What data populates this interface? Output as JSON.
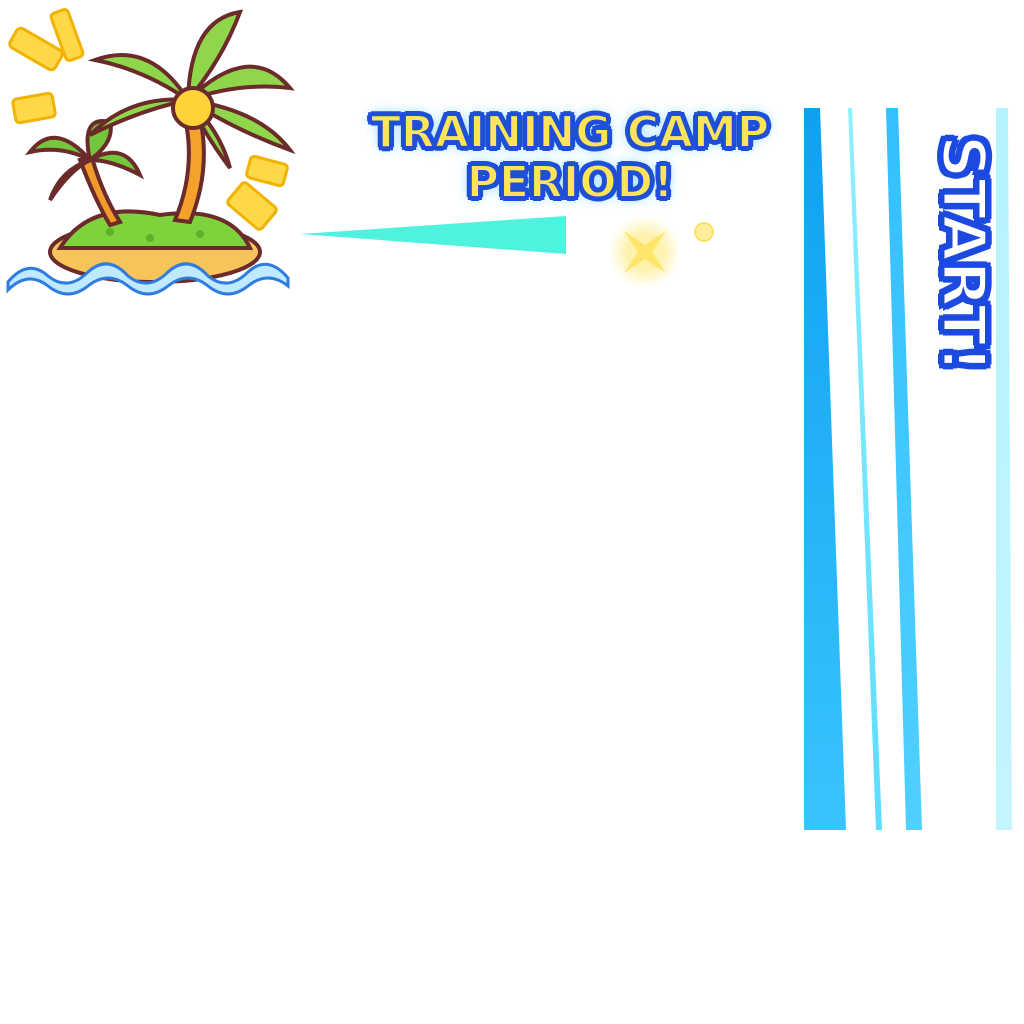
{
  "banner": {
    "title_line1": "TRAINING CAMP",
    "title_line2": "PERIOD!",
    "start_label": "START!"
  },
  "icons": {
    "island": "tropical-island-icon",
    "sparkle": "sparkle-icon"
  },
  "colors": {
    "title_fill": "#ffe45a",
    "title_outline": "#1f4fd8",
    "start_fill": "#ffffff",
    "start_outline": "#1c4ae0",
    "stripe_dark": "#1ea4f5",
    "stripe_light": "#7fe3ff",
    "beam": "#4ff0dc",
    "background": "#ffffff"
  }
}
